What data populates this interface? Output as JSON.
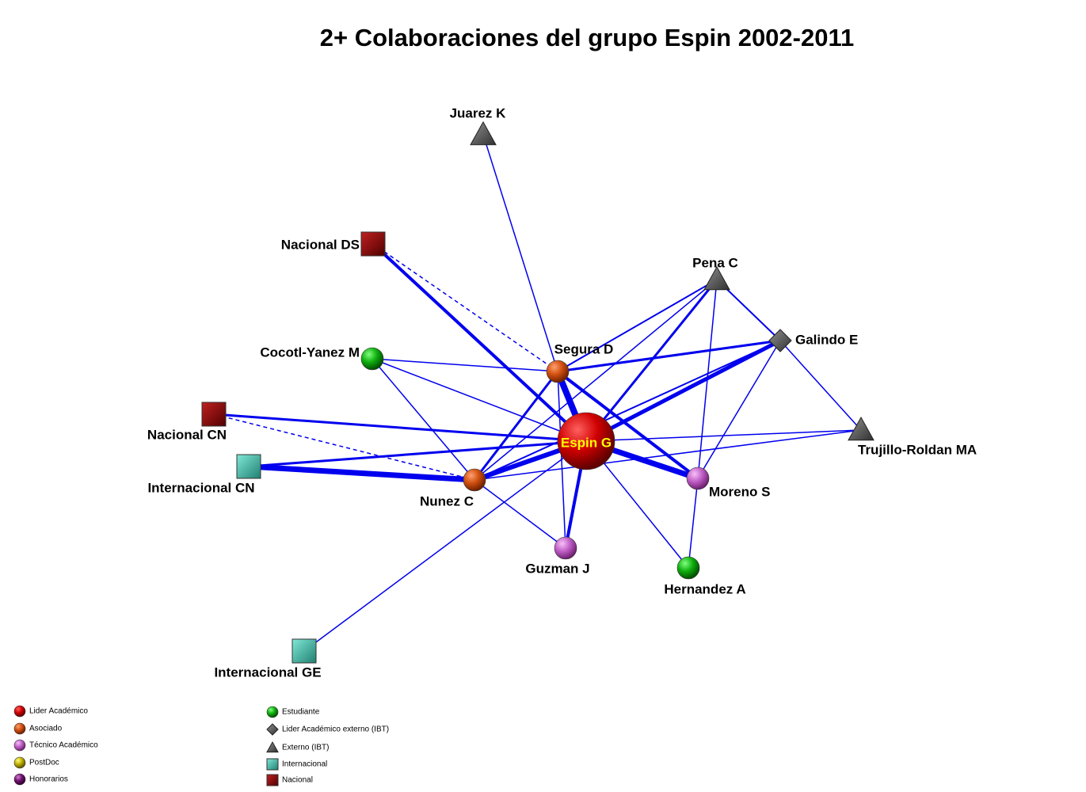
{
  "title": "2+ Colaboraciones del grupo  Espin 2002-2011",
  "nodes": [
    {
      "label": "Espin G"
    },
    {
      "label": "Segura D"
    },
    {
      "label": "Nunez C"
    },
    {
      "label": "Moreno S"
    },
    {
      "label": "Guzman J"
    },
    {
      "label": "Hernandez A"
    },
    {
      "label": "Cocotl-Yanez M"
    },
    {
      "label": "Juarez K"
    },
    {
      "label": "Pena C"
    },
    {
      "label": "Galindo E"
    },
    {
      "label": "Trujillo-Roldan MA"
    },
    {
      "label": "Nacional DS"
    },
    {
      "label": "Nacional CN"
    },
    {
      "label": "Internacional CN"
    },
    {
      "label": "Internacional GE"
    }
  ],
  "legend": [
    {
      "label": "Lider Académico"
    },
    {
      "label": "Asociado"
    },
    {
      "label": "Técnico Académico"
    },
    {
      "label": "PostDoc"
    },
    {
      "label": "Honorarios"
    },
    {
      "label": "Estudiante"
    },
    {
      "label": "Lider Académico externo (IBT)"
    },
    {
      "label": "Externo (IBT)"
    },
    {
      "label": "Internacional"
    },
    {
      "label": "Nacional"
    }
  ]
}
